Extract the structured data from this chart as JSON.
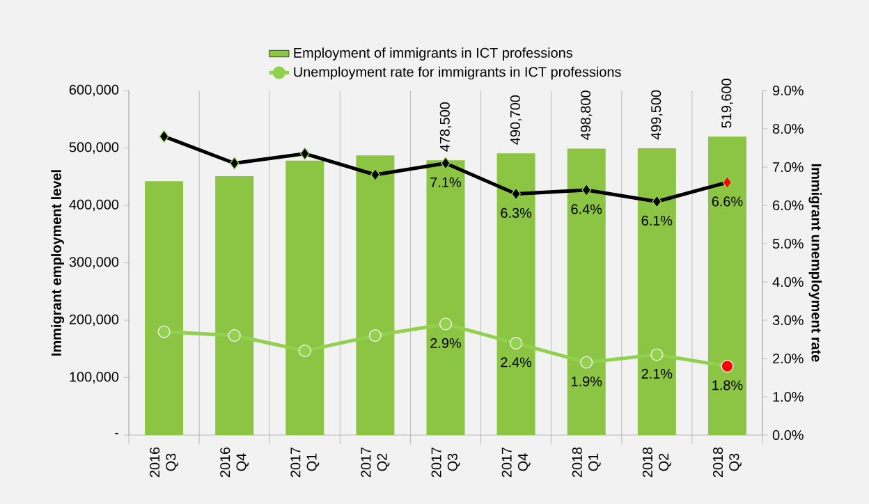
{
  "chart_data": {
    "type": "bar",
    "categories": [
      "2016 Q3",
      "2016 Q4",
      "2017 Q1",
      "2017 Q2",
      "2017 Q3",
      "2017 Q4",
      "2018 Q1",
      "2018 Q2",
      "2018 Q3"
    ],
    "ylabel": "Immigrant employment level",
    "y2label": "Immigrant unemployment rate",
    "series": [
      {
        "name": "Employment of immigrants in ICT professions",
        "color": "#8cc443",
        "values": [
          442000,
          451000,
          478000,
          487000,
          478500,
          490700,
          498800,
          499500,
          519600
        ],
        "value_labels": [
          null,
          null,
          null,
          null,
          "478,500",
          "490,700",
          "498,800",
          "499,500",
          "519,600"
        ]
      },
      {
        "name": "Unemployment rate for immigrants in ICT professions",
        "type": "line",
        "axis": "y2",
        "color": "#92d050",
        "marker": "circle",
        "colors": [
          "#92d050",
          "#92d050",
          "#92d050",
          "#92d050",
          "#92d050",
          "#92d050",
          "#92d050",
          "#92d050",
          "#ff0000"
        ],
        "values": [
          2.7,
          2.6,
          2.2,
          2.6,
          2.9,
          2.4,
          1.9,
          2.1,
          1.8
        ],
        "value_labels": [
          null,
          null,
          null,
          null,
          "2.9%",
          "2.4%",
          "1.9%",
          "2.1%",
          "1.8%"
        ]
      },
      {
        "type": "line",
        "axis": "y2",
        "color": "#000000",
        "marker": "diamond",
        "colors": [
          "#000000",
          "#000000",
          "#000000",
          "#000000",
          "#000000",
          "#000000",
          "#000000",
          "#000000",
          "#ff0000"
        ],
        "values": [
          7.8,
          7.1,
          7.35,
          6.8,
          7.1,
          6.3,
          6.4,
          6.1,
          6.6
        ],
        "value_labels": [
          null,
          null,
          null,
          null,
          "7.1%",
          "6.3%",
          "6.4%",
          "6.1%",
          "6.6%"
        ]
      }
    ],
    "ylim": [
      0,
      600000
    ],
    "yticks": [
      {
        "value": 0,
        "label": "-"
      },
      {
        "value": 100000,
        "label": "100,000"
      },
      {
        "value": 200000,
        "label": "200,000"
      },
      {
        "value": 300000,
        "label": "300,000"
      },
      {
        "value": 400000,
        "label": "400,000"
      },
      {
        "value": 500000,
        "label": "500,000"
      },
      {
        "value": 600000,
        "label": "600,000"
      }
    ],
    "y2lim": [
      0,
      9
    ],
    "y2ticks": [
      {
        "value": 0,
        "label": "0.0%"
      },
      {
        "value": 1,
        "label": "1.0%"
      },
      {
        "value": 2,
        "label": "2.0%"
      },
      {
        "value": 3,
        "label": "3.0%"
      },
      {
        "value": 4,
        "label": "4.0%"
      },
      {
        "value": 5,
        "label": "5.0%"
      },
      {
        "value": 6,
        "label": "6.0%"
      },
      {
        "value": 7,
        "label": "7.0%"
      },
      {
        "value": 8,
        "label": "8.0%"
      },
      {
        "value": 9,
        "label": "9.0%"
      }
    ],
    "grid": "x",
    "legend": "top"
  }
}
